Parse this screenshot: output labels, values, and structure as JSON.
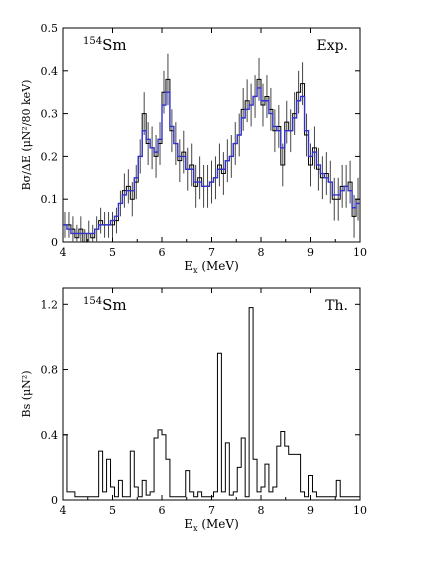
{
  "chart_data": [
    {
      "type": "line",
      "panel": "top",
      "nucleus_mass": "154",
      "nucleus_symbol": "Sm",
      "corner_label": "Exp.",
      "xlabel_main": "E",
      "xlabel_sub": "x",
      "xlabel_unit": " (MeV)",
      "ylabel_text": "Bσ/ΔE (μN²/80 keV)",
      "xlim": [
        4,
        10
      ],
      "ylim": [
        0,
        0.5
      ],
      "xticks": [
        "4",
        "5",
        "6",
        "7",
        "8",
        "9",
        "10"
      ],
      "yticks": [
        "0",
        "0.1",
        "0.2",
        "0.3",
        "0.4",
        "0.5"
      ],
      "grid": false,
      "colors": {
        "histogram": "#000000",
        "smoothed": "#3333cc",
        "errorbars": "#444444"
      },
      "x": [
        4.04,
        4.12,
        4.2,
        4.28,
        4.36,
        4.44,
        4.52,
        4.6,
        4.68,
        4.76,
        4.84,
        4.92,
        5.0,
        5.08,
        5.16,
        5.24,
        5.32,
        5.4,
        5.48,
        5.56,
        5.64,
        5.72,
        5.8,
        5.88,
        5.96,
        6.04,
        6.12,
        6.2,
        6.28,
        6.36,
        6.44,
        6.52,
        6.6,
        6.68,
        6.76,
        6.84,
        6.92,
        7.0,
        7.08,
        7.16,
        7.24,
        7.32,
        7.4,
        7.48,
        7.56,
        7.64,
        7.72,
        7.8,
        7.88,
        7.96,
        8.04,
        8.12,
        8.2,
        8.28,
        8.36,
        8.44,
        8.52,
        8.6,
        8.68,
        8.76,
        8.84,
        8.92,
        9.0,
        9.08,
        9.16,
        9.24,
        9.32,
        9.4,
        9.48,
        9.56,
        9.64,
        9.72,
        9.8,
        9.88,
        9.96
      ],
      "y": [
        0.04,
        0.04,
        0.03,
        0.01,
        0.03,
        0.0,
        0.02,
        0.01,
        0.03,
        0.05,
        0.04,
        0.04,
        0.04,
        0.05,
        0.09,
        0.12,
        0.13,
        0.1,
        0.14,
        0.2,
        0.3,
        0.23,
        0.22,
        0.2,
        0.23,
        0.35,
        0.38,
        0.26,
        0.23,
        0.19,
        0.21,
        0.17,
        0.18,
        0.13,
        0.15,
        0.13,
        0.13,
        0.14,
        0.15,
        0.18,
        0.16,
        0.19,
        0.2,
        0.23,
        0.25,
        0.31,
        0.33,
        0.32,
        0.34,
        0.38,
        0.32,
        0.34,
        0.31,
        0.26,
        0.27,
        0.18,
        0.28,
        0.26,
        0.3,
        0.35,
        0.37,
        0.25,
        0.18,
        0.22,
        0.17,
        0.15,
        0.16,
        0.14,
        0.1,
        0.1,
        0.13,
        0.13,
        0.14,
        0.06,
        0.1
      ],
      "err": [
        0.03,
        0.03,
        0.03,
        0.03,
        0.03,
        0.03,
        0.03,
        0.03,
        0.03,
        0.03,
        0.03,
        0.03,
        0.03,
        0.03,
        0.03,
        0.04,
        0.04,
        0.04,
        0.04,
        0.04,
        0.05,
        0.05,
        0.05,
        0.05,
        0.05,
        0.05,
        0.06,
        0.05,
        0.05,
        0.05,
        0.05,
        0.05,
        0.05,
        0.05,
        0.05,
        0.05,
        0.05,
        0.05,
        0.05,
        0.05,
        0.05,
        0.05,
        0.05,
        0.05,
        0.05,
        0.05,
        0.05,
        0.05,
        0.05,
        0.05,
        0.05,
        0.05,
        0.05,
        0.05,
        0.05,
        0.05,
        0.05,
        0.05,
        0.05,
        0.05,
        0.05,
        0.05,
        0.05,
        0.05,
        0.05,
        0.05,
        0.05,
        0.05,
        0.05,
        0.05,
        0.05,
        0.05,
        0.05,
        0.05,
        0.05
      ],
      "smoothed_y": [
        0.04,
        0.03,
        0.02,
        0.02,
        0.02,
        0.02,
        0.02,
        0.02,
        0.03,
        0.04,
        0.04,
        0.04,
        0.05,
        0.06,
        0.09,
        0.11,
        0.12,
        0.12,
        0.15,
        0.2,
        0.26,
        0.24,
        0.22,
        0.21,
        0.24,
        0.32,
        0.35,
        0.27,
        0.23,
        0.2,
        0.2,
        0.17,
        0.17,
        0.14,
        0.14,
        0.13,
        0.13,
        0.14,
        0.15,
        0.17,
        0.17,
        0.19,
        0.2,
        0.23,
        0.25,
        0.29,
        0.31,
        0.32,
        0.34,
        0.36,
        0.33,
        0.33,
        0.3,
        0.27,
        0.26,
        0.22,
        0.26,
        0.26,
        0.29,
        0.33,
        0.34,
        0.26,
        0.2,
        0.21,
        0.18,
        0.16,
        0.15,
        0.14,
        0.11,
        0.11,
        0.12,
        0.13,
        0.12,
        0.08,
        0.09
      ]
    },
    {
      "type": "bar",
      "panel": "bottom",
      "nucleus_mass": "154",
      "nucleus_symbol": "Sm",
      "corner_label": "Th.",
      "xlabel_main": "E",
      "xlabel_sub": "x",
      "xlabel_unit": " (MeV)",
      "ylabel_text": "Bs (μN²)",
      "xlim": [
        4,
        10
      ],
      "ylim": [
        0,
        1.3
      ],
      "xticks": [
        "4",
        "5",
        "6",
        "7",
        "8",
        "9",
        "10"
      ],
      "yticks": [
        "0",
        "0.4",
        "0.8",
        "1.2"
      ],
      "grid": false,
      "colors": {
        "histogram": "#000000"
      },
      "bin_edges": [
        4.0,
        4.08,
        4.16,
        4.24,
        4.32,
        4.4,
        4.48,
        4.56,
        4.64,
        4.72,
        4.8,
        4.88,
        4.96,
        5.04,
        5.12,
        5.2,
        5.28,
        5.36,
        5.44,
        5.52,
        5.6,
        5.68,
        5.76,
        5.84,
        5.92,
        6.0,
        6.08,
        6.16,
        6.24,
        6.32,
        6.4,
        6.48,
        6.56,
        6.64,
        6.72,
        6.8,
        6.88,
        6.96,
        7.04,
        7.12,
        7.2,
        7.28,
        7.36,
        7.44,
        7.52,
        7.6,
        7.68,
        7.76,
        7.84,
        7.92,
        8.0,
        8.08,
        8.16,
        8.24,
        8.32,
        8.4,
        8.48,
        8.56,
        8.64,
        8.72,
        8.8,
        8.88,
        8.96,
        9.04,
        9.12,
        9.2,
        9.28,
        9.36,
        9.44,
        9.52,
        9.6,
        9.68,
        9.76,
        9.84,
        9.92,
        10.0
      ],
      "values": [
        0.4,
        0.05,
        0.05,
        0.02,
        0.02,
        0.02,
        0.02,
        0.02,
        0.02,
        0.3,
        0.05,
        0.25,
        0.08,
        0.02,
        0.12,
        0.02,
        0.02,
        0.3,
        0.08,
        0.02,
        0.12,
        0.03,
        0.05,
        0.38,
        0.43,
        0.4,
        0.25,
        0.02,
        0.02,
        0.02,
        0.02,
        0.18,
        0.05,
        0.02,
        0.05,
        0.02,
        0.02,
        0.02,
        0.05,
        0.9,
        0.05,
        0.35,
        0.03,
        0.05,
        0.2,
        0.38,
        0.02,
        1.18,
        0.25,
        0.05,
        0.08,
        0.22,
        0.05,
        0.08,
        0.33,
        0.42,
        0.33,
        0.28,
        0.28,
        0.28,
        0.05,
        0.02,
        0.15,
        0.05,
        0.02,
        0.02,
        0.02,
        0.02,
        0.02,
        0.12,
        0.02,
        0.02,
        0.02,
        0.02,
        0.02
      ]
    }
  ]
}
